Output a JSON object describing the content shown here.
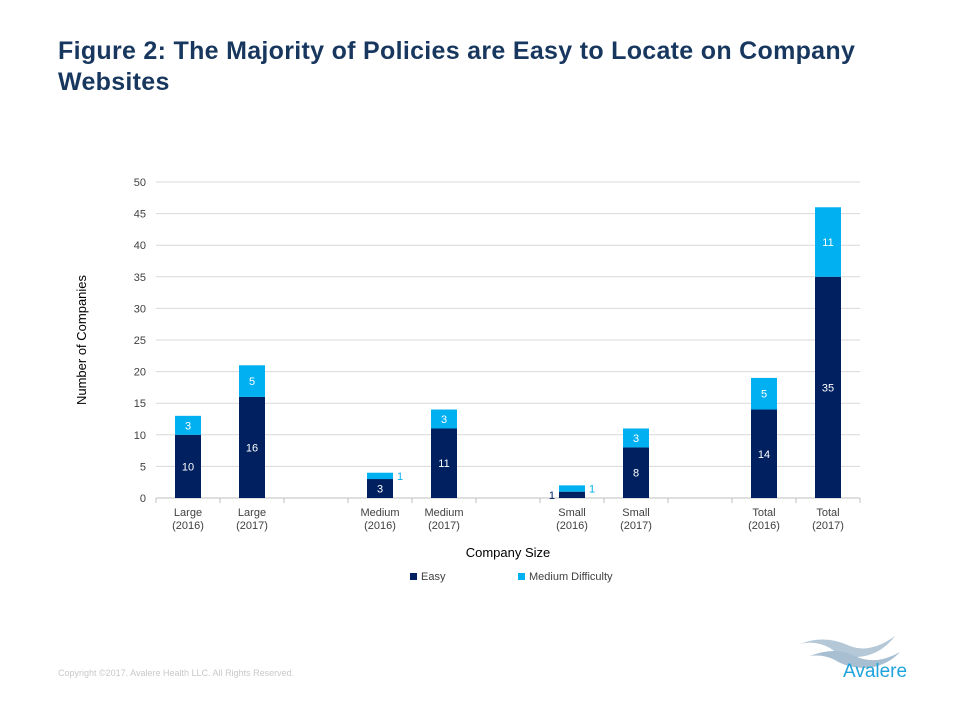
{
  "title": "Figure 2: The Majority of Policies are Easy to Locate on Company Websites",
  "footer": {
    "copyright": "Copyright ©2017. Avalere Health LLC. All Rights Reserved.",
    "logo_text": "Avalere"
  },
  "colors": {
    "easy": "#002060",
    "medium": "#00b0f0",
    "title": "#17375e"
  },
  "chart_data": {
    "type": "bar",
    "stacked": true,
    "xlabel": "Company Size",
    "ylabel": "Number of Companies",
    "ylim": [
      0,
      50
    ],
    "yticks": [
      0,
      5,
      10,
      15,
      20,
      25,
      30,
      35,
      40,
      45,
      50
    ],
    "grid": true,
    "legend": "bottom",
    "categories": [
      [
        "Large",
        "(2016)"
      ],
      [
        "Large",
        "(2017)"
      ],
      [
        "",
        ""
      ],
      [
        "Medium",
        "(2016)"
      ],
      [
        "Medium",
        "(2017)"
      ],
      [
        "",
        ""
      ],
      [
        "Small",
        "(2016)"
      ],
      [
        "Small",
        "(2017)"
      ],
      [
        "",
        ""
      ],
      [
        "Total",
        "(2016)"
      ],
      [
        "Total",
        "(2017)"
      ]
    ],
    "series": [
      {
        "name": "Easy",
        "color": "#002060",
        "values": [
          10,
          16,
          null,
          3,
          11,
          null,
          1,
          8,
          null,
          14,
          35
        ]
      },
      {
        "name": "Medium Difficulty",
        "color": "#00b0f0",
        "values": [
          3,
          5,
          null,
          1,
          3,
          null,
          1,
          3,
          null,
          5,
          11
        ]
      }
    ]
  }
}
